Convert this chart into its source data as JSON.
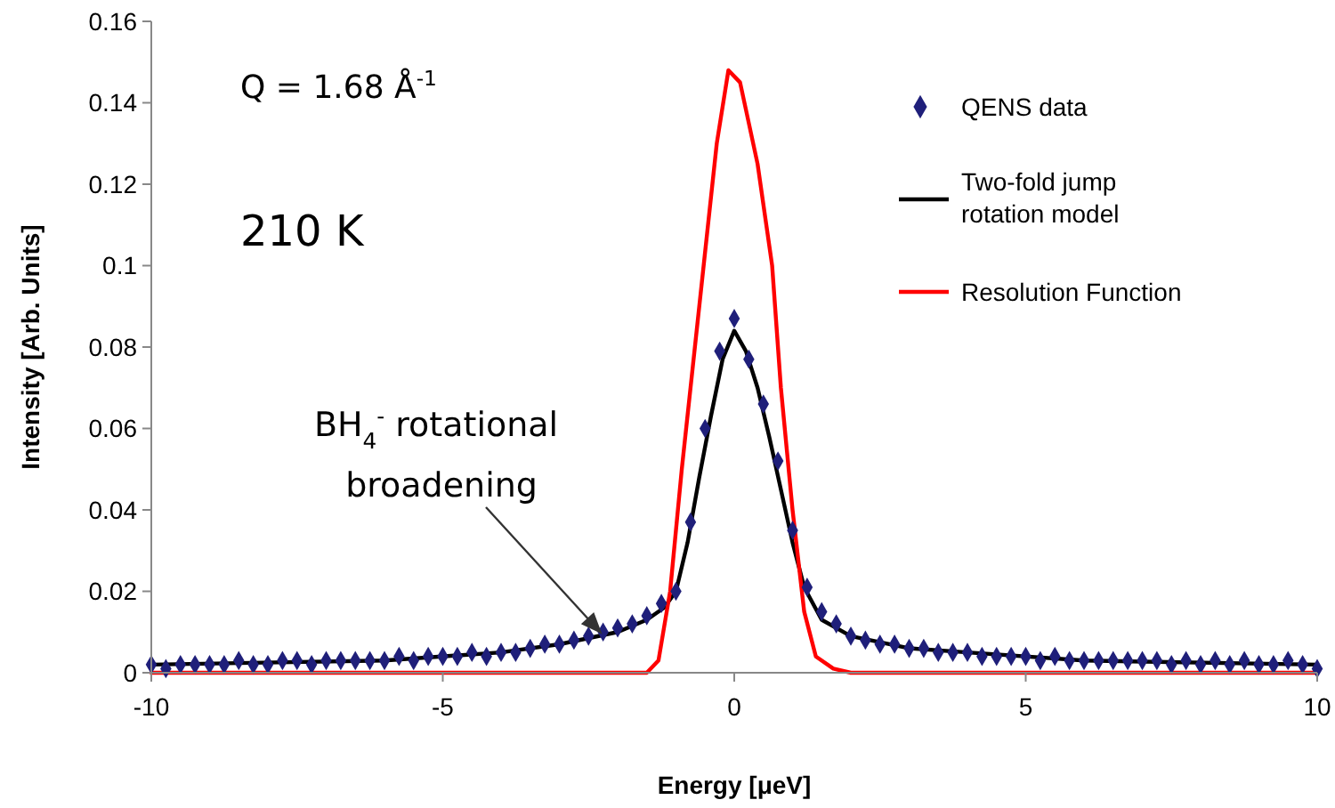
{
  "chart_data": {
    "type": "scatter",
    "xlabel": "Energy [μeV]",
    "ylabel": "Intensity [Arb. Units]",
    "xlim": [
      -10,
      10
    ],
    "xticks": [
      -10,
      -5,
      0,
      5,
      10
    ],
    "ylim": [
      0,
      0.16
    ],
    "yticks": [
      0,
      0.02,
      0.04,
      0.06,
      0.08,
      0.1,
      0.12,
      0.14,
      0.16
    ],
    "grid": false,
    "legend": "top right",
    "annotations": [
      "Q = 1.68 Å$^{-1}$",
      "210 K",
      {
        "text": "BH$_{4}$$^{-}$ rotational broadening",
        "x": -2.3,
        "y": 0.01
      }
    ],
    "series": [
      {
        "name": "QENS data",
        "marker": "diamond",
        "color": "#1f1f7a",
        "x": [
          -10,
          -9.75,
          -9.5,
          -9.25,
          -9,
          -8.75,
          -8.5,
          -8.25,
          -8,
          -7.75,
          -7.5,
          -7.25,
          -7,
          -6.75,
          -6.5,
          -6.25,
          -6,
          -5.75,
          -5.5,
          -5.25,
          -5,
          -4.75,
          -4.5,
          -4.25,
          -4,
          -3.75,
          -3.5,
          -3.25,
          -3,
          -2.75,
          -2.5,
          -2.25,
          -2,
          -1.75,
          -1.5,
          -1.25,
          -1,
          -0.75,
          -0.5,
          -0.25,
          0,
          0.25,
          0.5,
          0.75,
          1,
          1.25,
          1.5,
          1.75,
          2,
          2.25,
          2.5,
          2.75,
          3,
          3.25,
          3.5,
          3.75,
          4,
          4.25,
          4.5,
          4.75,
          5,
          5.25,
          5.5,
          5.75,
          6,
          6.25,
          6.5,
          6.75,
          7,
          7.25,
          7.5,
          7.75,
          8,
          8.25,
          8.5,
          8.75,
          9,
          9.25,
          9.5,
          9.75,
          10
        ],
        "values": [
          0.002,
          0.001,
          0.002,
          0.002,
          0.002,
          0.002,
          0.003,
          0.002,
          0.002,
          0.003,
          0.003,
          0.002,
          0.003,
          0.003,
          0.003,
          0.003,
          0.003,
          0.004,
          0.003,
          0.004,
          0.004,
          0.004,
          0.005,
          0.004,
          0.005,
          0.005,
          0.006,
          0.007,
          0.007,
          0.008,
          0.009,
          0.01,
          0.011,
          0.012,
          0.014,
          0.017,
          0.02,
          0.037,
          0.06,
          0.079,
          0.087,
          0.077,
          0.066,
          0.052,
          0.035,
          0.021,
          0.015,
          0.012,
          0.009,
          0.008,
          0.007,
          0.007,
          0.006,
          0.006,
          0.005,
          0.005,
          0.005,
          0.004,
          0.004,
          0.004,
          0.004,
          0.003,
          0.004,
          0.003,
          0.003,
          0.003,
          0.003,
          0.003,
          0.003,
          0.003,
          0.002,
          0.003,
          0.002,
          0.003,
          0.002,
          0.003,
          0.002,
          0.002,
          0.003,
          0.002,
          0.001
        ]
      },
      {
        "name": "Two-fold jump rotation model",
        "type": "line",
        "marker": "none",
        "line_style": "solid",
        "color": "#000000",
        "x": [
          -10,
          -6,
          -4,
          -3,
          -2,
          -1.5,
          -1.2,
          -1,
          -0.8,
          -0.6,
          -0.4,
          -0.2,
          0,
          0.2,
          0.4,
          0.6,
          0.8,
          1,
          1.2,
          1.5,
          2,
          3,
          4,
          6,
          10
        ],
        "values": [
          0.002,
          0.003,
          0.005,
          0.007,
          0.01,
          0.013,
          0.016,
          0.02,
          0.032,
          0.048,
          0.063,
          0.077,
          0.084,
          0.079,
          0.07,
          0.058,
          0.045,
          0.032,
          0.021,
          0.013,
          0.009,
          0.006,
          0.005,
          0.003,
          0.002
        ]
      },
      {
        "name": "Resolution Function",
        "type": "line",
        "marker": "none",
        "line_style": "solid",
        "color": "#ff0000",
        "x": [
          -10,
          -1.5,
          -1.3,
          -1.1,
          -0.9,
          -0.6,
          -0.3,
          -0.1,
          0.1,
          0.4,
          0.6,
          0.65,
          0.8,
          1,
          1.2,
          1.4,
          1.7,
          2,
          10
        ],
        "values": [
          0,
          0,
          0.003,
          0.02,
          0.05,
          0.09,
          0.13,
          0.148,
          0.145,
          0.125,
          0.105,
          0.1,
          0.07,
          0.04,
          0.015,
          0.004,
          0.001,
          0,
          0
        ]
      }
    ]
  }
}
